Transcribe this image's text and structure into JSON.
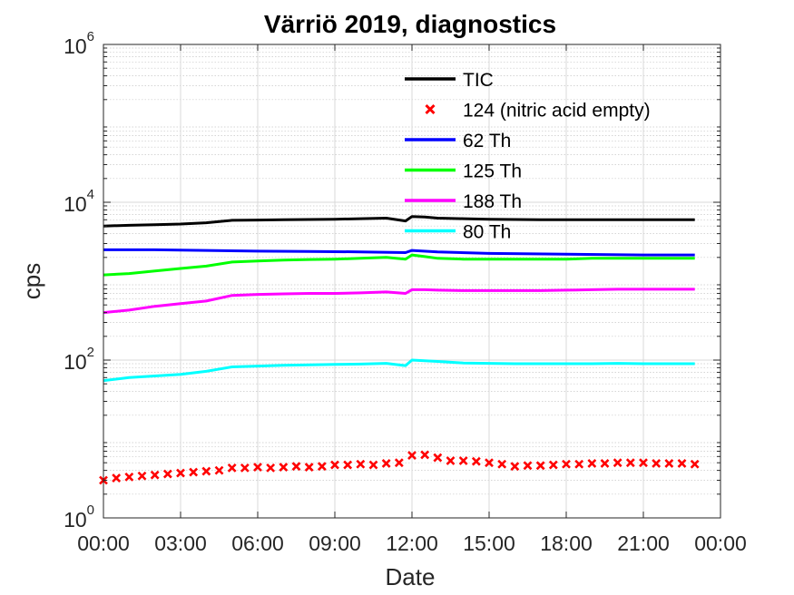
{
  "chart_data": {
    "type": "line",
    "title": "Värriö 2019, diagnostics",
    "xlabel": "Date",
    "ylabel": "cps",
    "y_scale": "log",
    "ylim": [
      1,
      1000000
    ],
    "y_ticks": [
      {
        "value": 1,
        "base": "10",
        "exp": "0"
      },
      {
        "value": 100,
        "base": "10",
        "exp": "2"
      },
      {
        "value": 10000,
        "base": "10",
        "exp": "4"
      },
      {
        "value": 1000000,
        "base": "10",
        "exp": "6"
      }
    ],
    "xlim": [
      "00:00",
      "24:00"
    ],
    "x_ticks": [
      "00:00",
      "03:00",
      "06:00",
      "09:00",
      "12:00",
      "15:00",
      "18:00",
      "21:00",
      "00:00"
    ],
    "grid": true,
    "legend_position": "top-right",
    "series": [
      {
        "name": "TIC",
        "color": "#000000",
        "style": "line",
        "x": [
          "00:00",
          "01:00",
          "02:00",
          "03:00",
          "04:00",
          "05:00",
          "06:00",
          "07:00",
          "08:00",
          "09:00",
          "10:00",
          "11:00",
          "11:45",
          "12:00",
          "12:30",
          "13:00",
          "14:00",
          "15:00",
          "16:00",
          "17:00",
          "18:00",
          "19:00",
          "20:00",
          "21:00",
          "22:00",
          "23:00"
        ],
        "y": [
          5000,
          5100,
          5200,
          5300,
          5500,
          5900,
          5950,
          6000,
          6050,
          6100,
          6200,
          6300,
          5800,
          6600,
          6500,
          6300,
          6200,
          6100,
          6050,
          6000,
          6000,
          6000,
          6000,
          6000,
          6000,
          6000
        ]
      },
      {
        "name": "124 (nitric acid empty)",
        "color": "#ff0000",
        "style": "marker",
        "x": [
          "00:00",
          "00:30",
          "01:00",
          "01:30",
          "02:00",
          "02:30",
          "03:00",
          "03:30",
          "04:00",
          "04:30",
          "05:00",
          "05:30",
          "06:00",
          "06:30",
          "07:00",
          "07:30",
          "08:00",
          "08:30",
          "09:00",
          "09:30",
          "10:00",
          "10:30",
          "11:00",
          "11:30",
          "12:00",
          "12:30",
          "13:00",
          "13:30",
          "14:00",
          "14:30",
          "15:00",
          "15:30",
          "16:00",
          "16:30",
          "17:00",
          "17:30",
          "18:00",
          "18:30",
          "19:00",
          "19:30",
          "20:00",
          "20:30",
          "21:00",
          "21:30",
          "22:00",
          "22:30",
          "23:00"
        ],
        "y": [
          3.0,
          3.2,
          3.3,
          3.4,
          3.5,
          3.6,
          3.7,
          3.8,
          3.9,
          4.0,
          4.3,
          4.3,
          4.4,
          4.3,
          4.4,
          4.5,
          4.4,
          4.5,
          4.7,
          4.7,
          4.8,
          4.7,
          4.9,
          5.0,
          6.2,
          6.3,
          5.8,
          5.3,
          5.3,
          5.2,
          5.0,
          4.8,
          4.5,
          4.6,
          4.6,
          4.7,
          4.8,
          4.8,
          4.9,
          4.9,
          5.0,
          5.0,
          5.0,
          4.9,
          4.9,
          4.9,
          4.8
        ]
      },
      {
        "name": "62 Th",
        "color": "#0000ff",
        "style": "line",
        "x": [
          "00:00",
          "02:00",
          "04:00",
          "06:00",
          "08:00",
          "10:00",
          "11:45",
          "12:00",
          "13:00",
          "15:00",
          "18:00",
          "21:00",
          "23:00"
        ],
        "y": [
          2500,
          2500,
          2450,
          2400,
          2380,
          2350,
          2300,
          2450,
          2350,
          2250,
          2200,
          2150,
          2150
        ]
      },
      {
        "name": "125 Th",
        "color": "#00ff00",
        "style": "line",
        "x": [
          "00:00",
          "01:00",
          "02:00",
          "03:00",
          "04:00",
          "05:00",
          "06:00",
          "07:00",
          "08:00",
          "09:00",
          "10:00",
          "11:00",
          "11:45",
          "12:00",
          "12:30",
          "13:00",
          "14:00",
          "15:00",
          "16:00",
          "17:00",
          "18:00",
          "19:00",
          "20:00",
          "21:00",
          "22:00",
          "23:00"
        ],
        "y": [
          1200,
          1250,
          1350,
          1450,
          1550,
          1750,
          1800,
          1850,
          1880,
          1900,
          1950,
          2000,
          1900,
          2150,
          2050,
          1950,
          1900,
          1900,
          1900,
          1900,
          1900,
          1950,
          1950,
          1950,
          1950,
          1950
        ]
      },
      {
        "name": "188 Th",
        "color": "#ff00ff",
        "style": "line",
        "x": [
          "00:00",
          "01:00",
          "02:00",
          "03:00",
          "04:00",
          "05:00",
          "06:00",
          "07:00",
          "08:00",
          "09:00",
          "10:00",
          "11:00",
          "11:45",
          "12:00",
          "12:30",
          "13:00",
          "14:00",
          "15:00",
          "16:00",
          "17:00",
          "18:00",
          "19:00",
          "20:00",
          "21:00",
          "22:00",
          "23:00"
        ],
        "y": [
          400,
          430,
          480,
          520,
          560,
          660,
          680,
          690,
          700,
          700,
          710,
          730,
          700,
          780,
          780,
          770,
          760,
          760,
          760,
          760,
          770,
          780,
          790,
          790,
          790,
          790
        ]
      },
      {
        "name": "80 Th",
        "color": "#00ffff",
        "style": "line",
        "x": [
          "00:00",
          "01:00",
          "02:00",
          "03:00",
          "04:00",
          "05:00",
          "06:00",
          "07:00",
          "08:00",
          "09:00",
          "10:00",
          "11:00",
          "11:45",
          "12:00",
          "12:30",
          "13:00",
          "14:00",
          "15:00",
          "16:00",
          "17:00",
          "18:00",
          "19:00",
          "20:00",
          "21:00",
          "22:00",
          "23:00"
        ],
        "y": [
          55,
          60,
          63,
          66,
          72,
          82,
          84,
          86,
          87,
          88,
          89,
          91,
          85,
          100,
          98,
          96,
          92,
          91,
          90,
          90,
          90,
          90,
          91,
          90,
          90,
          90
        ]
      }
    ]
  }
}
